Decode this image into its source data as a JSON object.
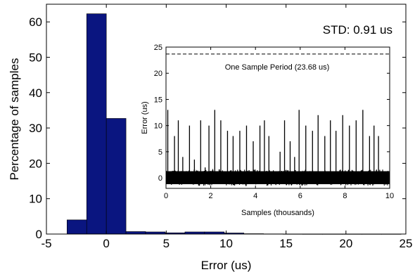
{
  "chart_data": [
    {
      "type": "bar",
      "xlabel": "Error (us)",
      "ylabel": "Percentage of samples",
      "annotation": "STD: 0.91 us",
      "xlim": [
        -5,
        25
      ],
      "ylim": [
        0,
        65
      ],
      "xticks": [
        -5,
        0,
        5,
        10,
        15,
        20,
        25
      ],
      "yticks": [
        0,
        10,
        20,
        30,
        40,
        50,
        60
      ],
      "bar_width": 1.64,
      "bar_color": "#0a1580",
      "x": [
        -2.46,
        -0.82,
        0.82,
        2.46,
        4.1,
        5.74,
        7.38,
        9.02,
        10.66,
        12.3,
        13.94,
        15.58,
        17.22,
        18.86,
        20.5,
        22.14,
        23.78
      ],
      "values": [
        4.0,
        62.3,
        32.7,
        0.7,
        0.6,
        0.35,
        0.6,
        0.6,
        0.3,
        0.1,
        0.05,
        0.03,
        0.02,
        0.02,
        0.02,
        0.02,
        0.02
      ]
    },
    {
      "type": "line",
      "xlabel": "Samples (thousands)",
      "ylabel": "Error (us)",
      "xlim": [
        0,
        10
      ],
      "ylim": [
        -2,
        25
      ],
      "xticks": [
        0,
        2,
        4,
        6,
        8,
        10
      ],
      "yticks": [
        0,
        5,
        10,
        15,
        20,
        25
      ],
      "reference_line": {
        "y": 23.68,
        "label": "One Sample Period (23.68 us)",
        "style": "dashed"
      },
      "noise_band": [
        -1.5,
        1.6
      ],
      "spikes": {
        "x": [
          0.08,
          0.38,
          0.55,
          0.75,
          1.05,
          1.27,
          1.55,
          1.75,
          1.92,
          2.18,
          2.45,
          2.75,
          3.0,
          3.3,
          3.6,
          3.9,
          4.2,
          4.4,
          4.6,
          5.1,
          5.3,
          5.55,
          5.75,
          5.95,
          6.25,
          6.55,
          6.8,
          7.1,
          7.35,
          7.6,
          7.9,
          8.2,
          8.5,
          8.8,
          9.1,
          9.3,
          9.5
        ],
        "y": [
          13,
          8,
          11,
          4,
          10,
          3.5,
          11,
          2,
          10,
          13,
          11,
          9,
          8,
          9,
          10,
          7,
          10,
          11,
          8,
          5,
          11,
          7,
          4,
          13,
          10,
          9,
          12,
          8,
          11,
          9,
          12,
          10,
          11,
          13,
          8,
          10,
          8
        ]
      }
    }
  ]
}
